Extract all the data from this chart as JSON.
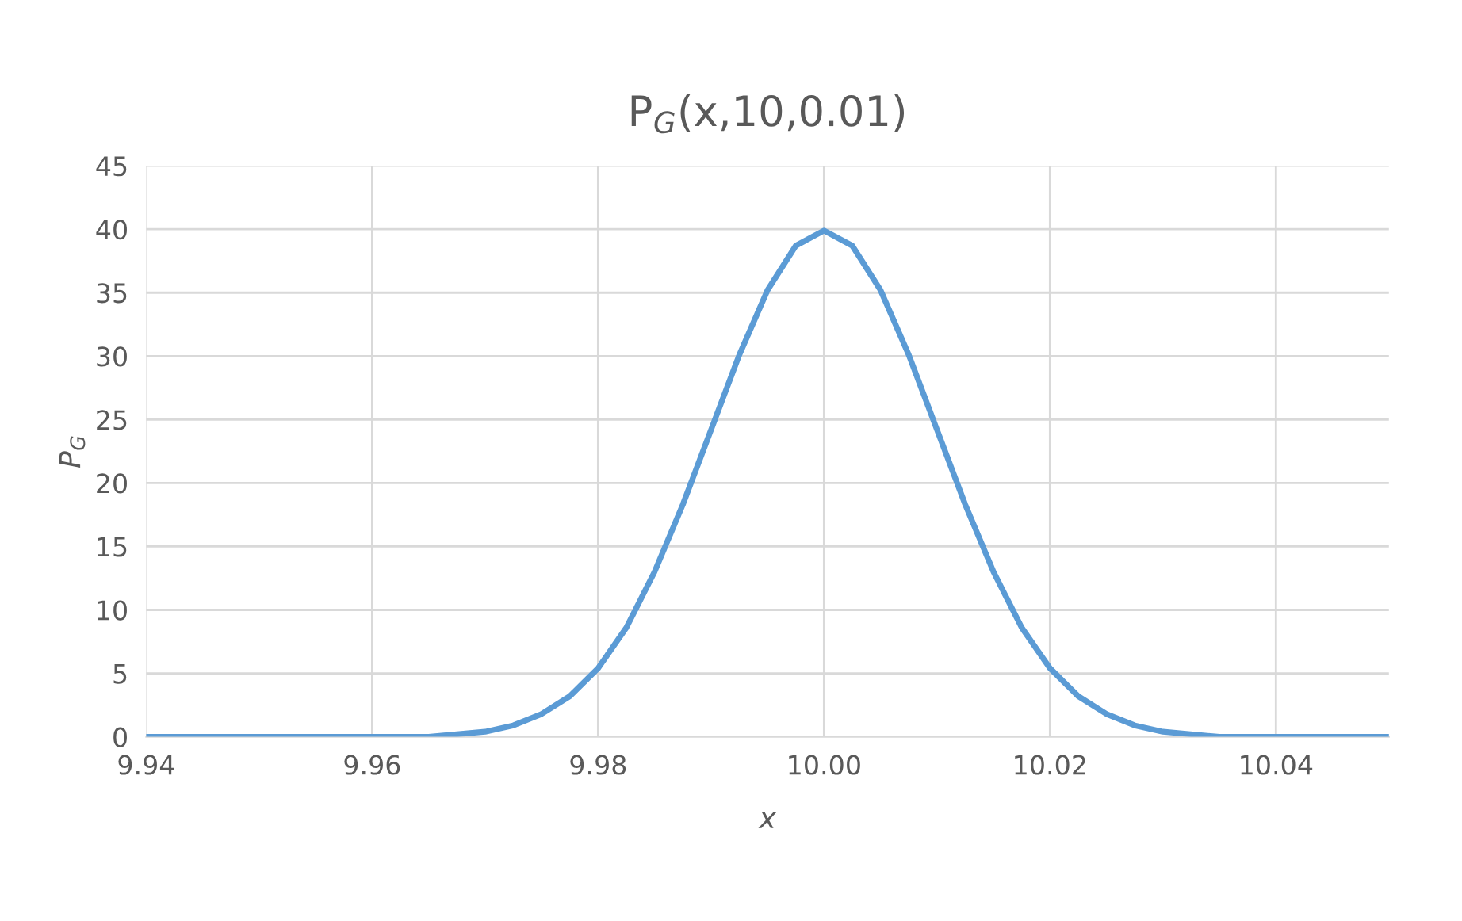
{
  "chart_data": {
    "type": "line",
    "title": "P$_{G}$(x,10,0.01)",
    "xlabel": "x",
    "ylabel": "P$_{G}$",
    "x": [
      9.94,
      9.95,
      9.96,
      9.965,
      9.97,
      9.9725,
      9.975,
      9.9775,
      9.98,
      9.9825,
      9.985,
      9.9875,
      9.99,
      9.9925,
      9.995,
      9.9975,
      10.0,
      10.0025,
      10.005,
      10.0075,
      10.01,
      10.0125,
      10.015,
      10.0175,
      10.02,
      10.0225,
      10.025,
      10.0275,
      10.03,
      10.035,
      10.04,
      10.05
    ],
    "series": [
      {
        "color": "#5b9bd5",
        "values": [
          0,
          0,
          0,
          0,
          0.4,
          0.9,
          1.8,
          3.2,
          5.4,
          8.6,
          13.0,
          18.3,
          24.2,
          30.1,
          35.2,
          38.7,
          39.9,
          38.7,
          35.2,
          30.1,
          24.2,
          18.3,
          13.0,
          8.6,
          5.4,
          3.2,
          1.8,
          0.9,
          0.4,
          0,
          0,
          0
        ]
      }
    ],
    "xlim": [
      9.94,
      10.05
    ],
    "xticks": [
      9.94,
      9.96,
      9.98,
      {
        "value": 10.0,
        "label": "10.00"
      },
      10.02,
      10.04
    ],
    "ylim": [
      0,
      45
    ],
    "yticks": [
      0,
      5,
      10,
      15,
      20,
      25,
      30,
      35,
      40,
      45
    ],
    "grid": true,
    "marker": "none",
    "line_style": "solid"
  }
}
